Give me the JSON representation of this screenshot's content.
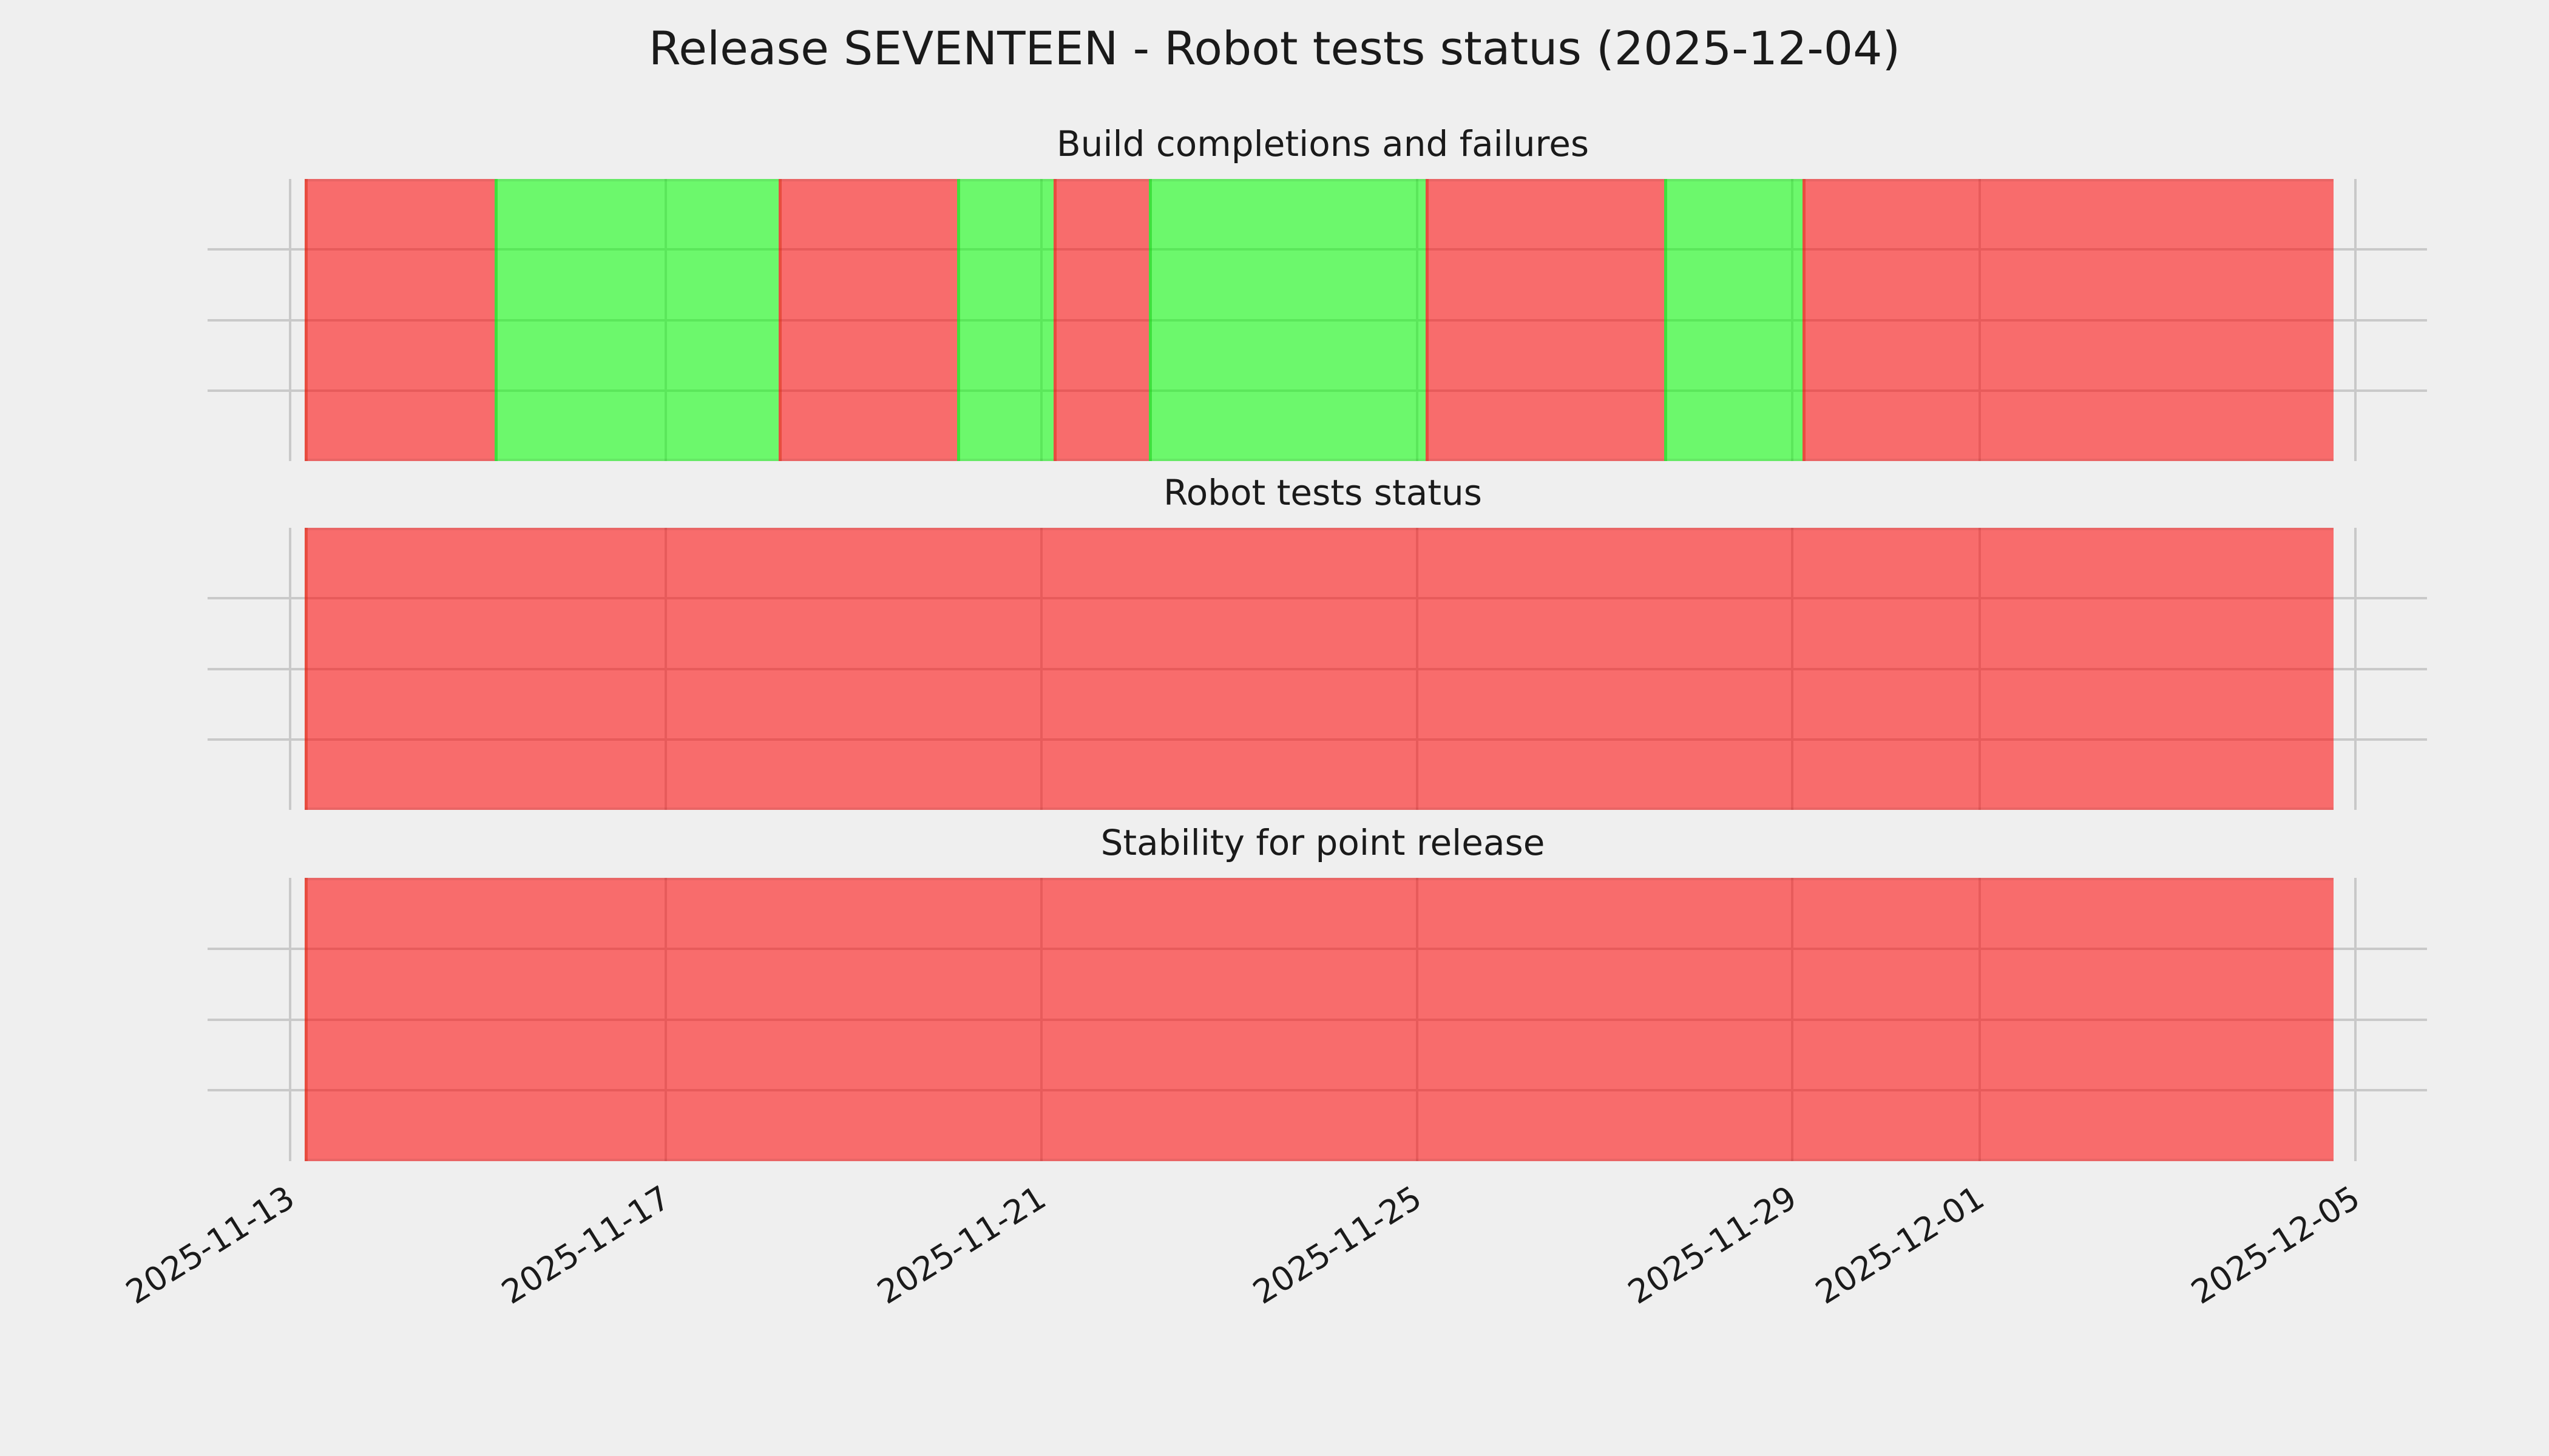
{
  "figure": {
    "title": "Release SEVENTEEN - Robot tests status (2025-12-04)",
    "background_color": "#efefef",
    "grid_color": "#c9c9c9",
    "text_color": "#1a1a1a"
  },
  "chart_data": {
    "type": "area",
    "subtype": "timeline-status-bands (matplotlib axvspan pass/fail timeline, 3 stacked panels)",
    "x_axis": {
      "start": "2025-11-13",
      "end": "2025-12-05",
      "tick_labels": [
        "2025-11-13",
        "2025-11-17",
        "2025-11-21",
        "2025-11-25",
        "2025-11-29",
        "2025-12-01",
        "2025-12-05"
      ],
      "tick_positions_pct": [
        0,
        18.19,
        36.38,
        54.57,
        72.73,
        81.81,
        100
      ],
      "tick_label_rotation_deg": 32,
      "grid": true
    },
    "y_axis": {
      "tick_labels": [],
      "gridlines_pct": [
        25,
        50,
        75
      ],
      "grid": true
    },
    "status_colors": {
      "fail": "rgba(255,0,0,0.55)",
      "pass": "rgba(0,255,0,0.55)",
      "fail_effective_hex": "#f86c6c",
      "pass_effective_hex": "#6cf86c"
    },
    "legend": "none",
    "panels": [
      {
        "title": "Build completions and failures",
        "segments": [
          {
            "status": "fail",
            "start": "2025-11-13 04:00",
            "end": "2025-11-15 04:00",
            "start_pct": 0.71,
            "end_pct": 9.9
          },
          {
            "status": "pass",
            "start": "2025-11-15 04:00",
            "end": "2025-11-18 05:00",
            "start_pct": 9.9,
            "end_pct": 23.66
          },
          {
            "status": "fail",
            "start": "2025-11-18 05:00",
            "end": "2025-11-20 03:00",
            "start_pct": 23.66,
            "end_pct": 32.3
          },
          {
            "status": "pass",
            "start": "2025-11-20 03:00",
            "end": "2025-11-21 03:00",
            "start_pct": 32.3,
            "end_pct": 36.97
          },
          {
            "status": "fail",
            "start": "2025-11-21 03:00",
            "end": "2025-11-22 04:00",
            "start_pct": 36.97,
            "end_pct": 41.58
          },
          {
            "status": "pass",
            "start": "2025-11-22 04:00",
            "end": "2025-11-25 02:00",
            "start_pct": 41.58,
            "end_pct": 54.98
          },
          {
            "status": "fail",
            "start": "2025-11-25 02:00",
            "end": "2025-11-27 15:00",
            "start_pct": 54.98,
            "end_pct": 66.53
          },
          {
            "status": "pass",
            "start": "2025-11-27 15:00",
            "end": "2025-11-29 03:00",
            "start_pct": 66.53,
            "end_pct": 73.23
          },
          {
            "status": "fail",
            "start": "2025-11-29 03:00",
            "end": "2025-12-04 18:00",
            "start_pct": 73.23,
            "end_pct": 98.94
          }
        ]
      },
      {
        "title": "Robot tests status",
        "segments": [
          {
            "status": "fail",
            "start": "2025-11-13 04:00",
            "end": "2025-12-04 18:00",
            "start_pct": 0.71,
            "end_pct": 98.94
          }
        ]
      },
      {
        "title": "Stability for point release",
        "segments": [
          {
            "status": "fail",
            "start": "2025-11-13 04:00",
            "end": "2025-12-04 18:00",
            "start_pct": 0.71,
            "end_pct": 98.94
          }
        ]
      }
    ]
  }
}
